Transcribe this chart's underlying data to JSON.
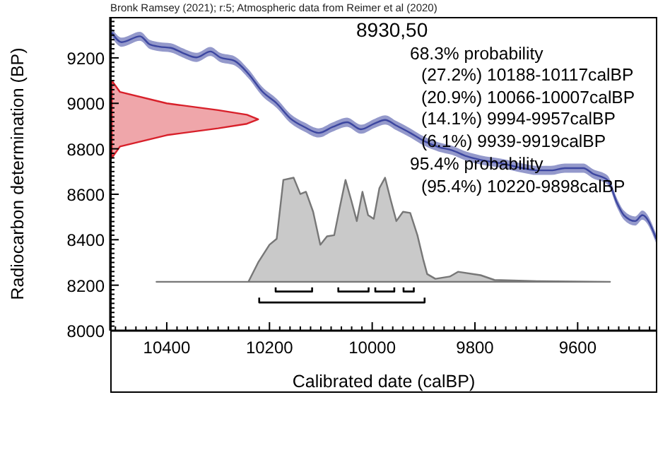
{
  "chart_data": {
    "type": "line",
    "title": "Bronk Ramsey (2021); r:5; Atmospheric data from Reimer et al (2020)",
    "xlabel": "Calibrated date (calBP)",
    "ylabel": "Radiocarbon determination (BP)",
    "annotations": [
      "8930,50",
      "68.3% probability",
      "(27.2%) 10188-10117calBP",
      "(20.9%) 10066-10007calBP",
      "(14.1%) 9994-9957calBP",
      "(6.1%) 9939-9919calBP",
      "95.4% probability",
      "(95.4%) 10220-9898calBP"
    ],
    "xlim": [
      10510,
      9445
    ],
    "ylim": [
      8000,
      9380
    ],
    "xticks": [
      {
        "value": 10500,
        "label": null
      },
      {
        "value": 10480,
        "label": null
      },
      {
        "value": 10460,
        "label": null
      },
      {
        "value": 10440,
        "label": null
      },
      {
        "value": 10420,
        "label": null
      },
      10400,
      {
        "value": 10380,
        "label": null
      },
      {
        "value": 10360,
        "label": null
      },
      {
        "value": 10340,
        "label": null
      },
      {
        "value": 10320,
        "label": null
      },
      {
        "value": 10300,
        "label": null
      },
      {
        "value": 10280,
        "label": null
      },
      {
        "value": 10260,
        "label": null
      },
      {
        "value": 10240,
        "label": null
      },
      {
        "value": 10220,
        "label": null
      },
      10200,
      {
        "value": 10180,
        "label": null
      },
      {
        "value": 10160,
        "label": null
      },
      {
        "value": 10140,
        "label": null
      },
      {
        "value": 10120,
        "label": null
      },
      {
        "value": 10100,
        "label": null
      },
      {
        "value": 10080,
        "label": null
      },
      {
        "value": 10060,
        "label": null
      },
      {
        "value": 10040,
        "label": null
      },
      {
        "value": 10020,
        "label": null
      },
      10000,
      {
        "value": 9980,
        "label": null
      },
      {
        "value": 9960,
        "label": null
      },
      {
        "value": 9940,
        "label": null
      },
      {
        "value": 9920,
        "label": null
      },
      {
        "value": 9900,
        "label": null
      },
      {
        "value": 9880,
        "label": null
      },
      {
        "value": 9860,
        "label": null
      },
      {
        "value": 9840,
        "label": null
      },
      {
        "value": 9820,
        "label": null
      },
      9800,
      {
        "value": 9780,
        "label": null
      },
      {
        "value": 9760,
        "label": null
      },
      {
        "value": 9740,
        "label": null
      },
      {
        "value": 9720,
        "label": null
      },
      {
        "value": 9700,
        "label": null
      },
      {
        "value": 9680,
        "label": null
      },
      {
        "value": 9660,
        "label": null
      },
      {
        "value": 9640,
        "label": null
      },
      {
        "value": 9620,
        "label": null
      },
      9600,
      {
        "value": 9580,
        "label": null
      },
      {
        "value": 9560,
        "label": null
      },
      {
        "value": 9540,
        "label": null
      },
      {
        "value": 9520,
        "label": null
      },
      {
        "value": 9500,
        "label": null
      },
      {
        "value": 9480,
        "label": null
      },
      {
        "value": 9460,
        "label": null
      }
    ],
    "yticks": [
      8000,
      {
        "value": 8020,
        "label": null
      },
      {
        "value": 8040,
        "label": null
      },
      {
        "value": 8060,
        "label": null
      },
      {
        "value": 8080,
        "label": null
      },
      {
        "value": 8100,
        "label": null
      },
      {
        "value": 8120,
        "label": null
      },
      {
        "value": 8140,
        "label": null
      },
      {
        "value": 8160,
        "label": null
      },
      {
        "value": 8180,
        "label": null
      },
      8200,
      {
        "value": 8220,
        "label": null
      },
      {
        "value": 8240,
        "label": null
      },
      {
        "value": 8260,
        "label": null
      },
      {
        "value": 8280,
        "label": null
      },
      {
        "value": 8300,
        "label": null
      },
      {
        "value": 8320,
        "label": null
      },
      {
        "value": 8340,
        "label": null
      },
      {
        "value": 8360,
        "label": null
      },
      {
        "value": 8380,
        "label": null
      },
      8400,
      {
        "value": 8420,
        "label": null
      },
      {
        "value": 8440,
        "label": null
      },
      {
        "value": 8460,
        "label": null
      },
      {
        "value": 8480,
        "label": null
      },
      {
        "value": 8500,
        "label": null
      },
      {
        "value": 8520,
        "label": null
      },
      {
        "value": 8540,
        "label": null
      },
      {
        "value": 8560,
        "label": null
      },
      {
        "value": 8580,
        "label": null
      },
      8600,
      {
        "value": 8620,
        "label": null
      },
      {
        "value": 8640,
        "label": null
      },
      {
        "value": 8660,
        "label": null
      },
      {
        "value": 8680,
        "label": null
      },
      {
        "value": 8700,
        "label": null
      },
      {
        "value": 8720,
        "label": null
      },
      {
        "value": 8740,
        "label": null
      },
      {
        "value": 8760,
        "label": null
      },
      {
        "value": 8780,
        "label": null
      },
      8800,
      {
        "value": 8820,
        "label": null
      },
      {
        "value": 8840,
        "label": null
      },
      {
        "value": 8860,
        "label": null
      },
      {
        "value": 8880,
        "label": null
      },
      {
        "value": 8900,
        "label": null
      },
      {
        "value": 8920,
        "label": null
      },
      {
        "value": 8940,
        "label": null
      },
      {
        "value": 8960,
        "label": null
      },
      {
        "value": 8980,
        "label": null
      },
      9000,
      {
        "value": 9020,
        "label": null
      },
      {
        "value": 9040,
        "label": null
      },
      {
        "value": 9060,
        "label": null
      },
      {
        "value": 9080,
        "label": null
      },
      {
        "value": 9100,
        "label": null
      },
      {
        "value": 9120,
        "label": null
      },
      {
        "value": 9140,
        "label": null
      },
      {
        "value": 9160,
        "label": null
      },
      {
        "value": 9180,
        "label": null
      },
      9200,
      {
        "value": 9220,
        "label": null
      },
      {
        "value": 9240,
        "label": null
      },
      {
        "value": 9260,
        "label": null
      },
      {
        "value": 9280,
        "label": null
      },
      {
        "value": 9300,
        "label": null
      },
      {
        "value": 9320,
        "label": null
      },
      {
        "value": 9340,
        "label": null
      },
      {
        "value": 9360,
        "label": null
      }
    ],
    "series": [
      {
        "color": "#3c46a0",
        "x": [
          10507,
          10488,
          10452,
          10433,
          10414,
          10392,
          10370,
          10342,
          10315,
          10296,
          10268,
          10241,
          10214,
          10186,
          10159,
          10132,
          10104,
          10077,
          10049,
          10022,
          9995,
          9975,
          9953,
          9926,
          9899,
          9871,
          9844,
          9816,
          9789,
          9748,
          9707,
          9679,
          9652,
          9625,
          9589,
          9570,
          9542,
          9523,
          9510,
          9488,
          9474,
          9447
        ],
        "values": [
          9311,
          9269,
          9295,
          9259,
          9249,
          9244,
          9223,
          9202,
          9228,
          9202,
          9187,
          9130,
          9052,
          9000,
          8933,
          8896,
          8870,
          8896,
          8917,
          8886,
          8912,
          8927,
          8902,
          8870,
          8834,
          8808,
          8793,
          8767,
          8751,
          8736,
          8715,
          8705,
          8705,
          8715,
          8715,
          8690,
          8663,
          8560,
          8508,
          8482,
          8508,
          8404
        ],
        "lower": [
          9291,
          9249,
          9275,
          9239,
          9229,
          9224,
          9203,
          9182,
          9208,
          9182,
          9167,
          9110,
          9032,
          8980,
          8913,
          8876,
          8850,
          8876,
          8897,
          8866,
          8892,
          8907,
          8882,
          8850,
          8814,
          8788,
          8773,
          8747,
          8731,
          8716,
          8695,
          8685,
          8685,
          8695,
          8695,
          8670,
          8643,
          8540,
          8488,
          8462,
          8488,
          8384
        ],
        "upper": [
          9331,
          9289,
          9315,
          9279,
          9269,
          9264,
          9243,
          9222,
          9248,
          9222,
          9207,
          9150,
          9072,
          9020,
          8953,
          8916,
          8890,
          8916,
          8937,
          8906,
          8932,
          8947,
          8922,
          8890,
          8854,
          8828,
          8813,
          8787,
          8771,
          8756,
          8735,
          8725,
          8725,
          8735,
          8735,
          8710,
          8683,
          8580,
          8528,
          8502,
          8528,
          8424
        ]
      },
      {
        "type": "area",
        "color": "#d8202a",
        "x": [
          10507,
          10491,
          10400,
          10300,
          10244,
          10222,
          10244,
          10300,
          10400,
          10491,
          10507
        ],
        "values": [
          9100,
          9050,
          9000,
          8970,
          8950,
          8930,
          8910,
          8890,
          8860,
          8810,
          8760
        ]
      },
      {
        "type": "area",
        "color": "#777777",
        "x": [
          10420,
          10241,
          10222,
          10200,
          10186,
          10173,
          10153,
          10140,
          10129,
          10115,
          10101,
          10088,
          10074,
          10063,
          10052,
          10041,
          10030,
          10019,
          10008,
          9997,
          9986,
          9975,
          9964,
          9953,
          9940,
          9926,
          9912,
          9901,
          9893,
          9877,
          9849,
          9833,
          9789,
          9762,
          9679,
          9537
        ],
        "values": [
          8215,
          8215,
          8300,
          8378,
          8404,
          8663,
          8673,
          8601,
          8611,
          8523,
          8378,
          8415,
          8420,
          8544,
          8663,
          8575,
          8482,
          8611,
          8508,
          8492,
          8627,
          8673,
          8575,
          8482,
          8523,
          8518,
          8420,
          8316,
          8249,
          8228,
          8238,
          8259,
          8244,
          8223,
          8218,
          8215
        ]
      },
      {
        "color": "#000000",
        "x": [
          10188,
          10188,
          10117,
          10117
        ],
        "values": [
          8190,
          8172,
          8172,
          8190
        ]
      },
      {
        "color": "#000000",
        "x": [
          10066,
          10066,
          10007,
          10007
        ],
        "values": [
          8190,
          8172,
          8172,
          8190
        ]
      },
      {
        "color": "#000000",
        "x": [
          9994,
          9994,
          9957,
          9957
        ],
        "values": [
          8190,
          8172,
          8172,
          8190
        ]
      },
      {
        "color": "#000000",
        "x": [
          9939,
          9939,
          9919,
          9919
        ],
        "values": [
          8190,
          8172,
          8172,
          8190
        ]
      },
      {
        "color": "#000000",
        "x": [
          10220,
          10220,
          9898,
          9898
        ],
        "values": [
          8145,
          8124,
          8124,
          8145
        ]
      }
    ]
  }
}
